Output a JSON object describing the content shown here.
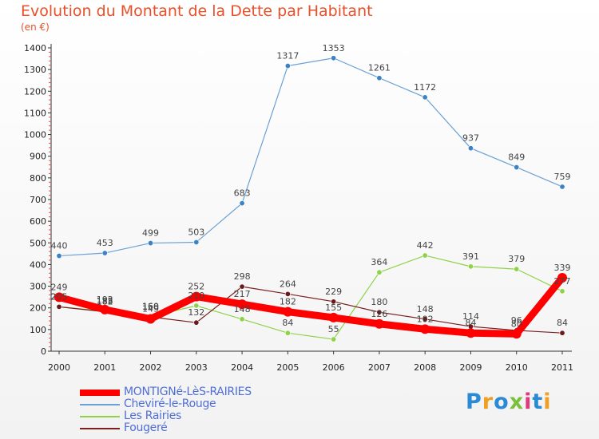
{
  "chart_data": {
    "type": "line",
    "title": "Evolution du Montant de la Dette par Habitant",
    "unit": "(en €)",
    "x": [
      "2000",
      "2001",
      "2002",
      "2003",
      "2004",
      "2005",
      "2006",
      "2007",
      "2008",
      "2009",
      "2010",
      "2011"
    ],
    "yticks": [
      "0",
      "100",
      "200",
      "300",
      "400",
      "500",
      "600",
      "700",
      "800",
      "900",
      "1000",
      "1100",
      "1200",
      "1300",
      "1400"
    ],
    "ylim": [
      0,
      1400
    ],
    "grid": false,
    "legend_position": "bottom-left",
    "series": [
      {
        "name": "MONTIGNé-LèS-RAIRIES",
        "color": "#ff0000",
        "values": [
          249,
          192,
          149,
          252,
          217,
          182,
          155,
          126,
          102,
          84,
          80,
          339
        ],
        "labels": [
          "249",
          "192",
          "149",
          "252",
          "217",
          "182",
          "155",
          "126",
          "102",
          "84",
          "80",
          "339"
        ]
      },
      {
        "name": "Cheviré-le-Rouge",
        "color": "#6aa1d6",
        "values": [
          440,
          453,
          499,
          503,
          683,
          1317,
          1353,
          1261,
          1172,
          937,
          849,
          759
        ],
        "labels": [
          "440",
          "453",
          "499",
          "503",
          "683",
          "1317",
          "1353",
          "1261",
          "1172",
          "937",
          "849",
          "759"
        ]
      },
      {
        "name": "Les Rairies",
        "color": "#8fd24a",
        "values": [
          205,
          185,
          160,
          210,
          148,
          84,
          55,
          364,
          442,
          391,
          379,
          277
        ],
        "labels": [
          "205",
          "185",
          "160",
          "210",
          "148",
          "84",
          "55",
          "364",
          "442",
          "391",
          "379",
          "277"
        ]
      },
      {
        "name": "Fougeré",
        "color": "#7a2020",
        "values": [
          205,
          182,
          158,
          132,
          298,
          264,
          229,
          180,
          148,
          114,
          96,
          84
        ],
        "labels": [
          "205",
          "182",
          "158",
          "132",
          "298",
          "264",
          "229",
          "180",
          "148",
          "114",
          "96",
          "84"
        ]
      }
    ]
  },
  "brand": {
    "text": "Proxiti"
  }
}
